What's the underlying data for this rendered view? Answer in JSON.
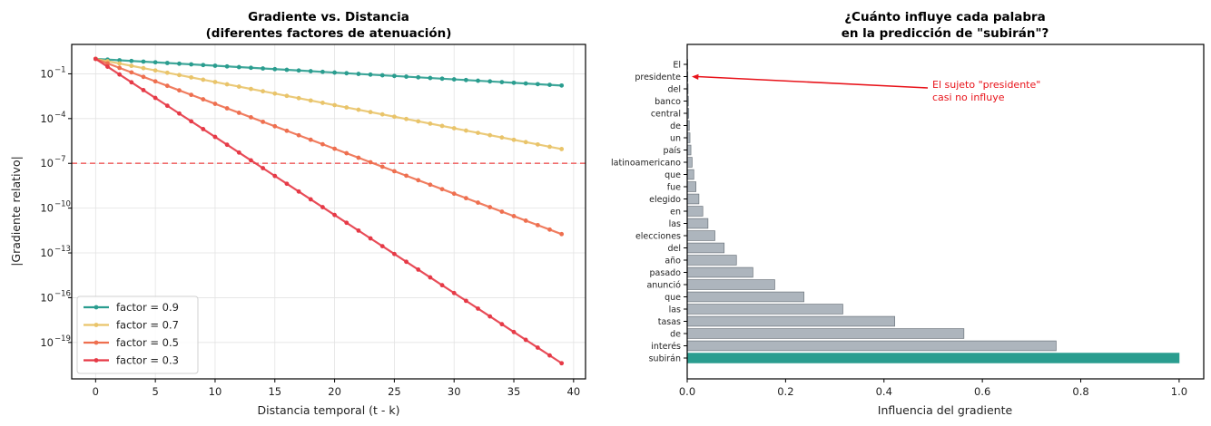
{
  "chart_data": [
    {
      "type": "line",
      "title_lines": [
        "Gradiente vs. Distancia",
        "(diferentes factores de atenuación)"
      ],
      "xlabel": "Distancia temporal (t - k)",
      "ylabel": "|Gradiente relativo|",
      "yscale": "log",
      "xlim": [
        -2,
        41
      ],
      "ylim_log10": [
        -21.44,
        0.97
      ],
      "xticks": [
        0,
        5,
        10,
        15,
        20,
        25,
        30,
        35,
        40
      ],
      "yticks_exp": [
        -1,
        -4,
        -7,
        -10,
        -13,
        -16,
        -19
      ],
      "grid": true,
      "legend_position": "lower-left",
      "threshold": {
        "value": 1e-07,
        "style": "dashed",
        "color": "#f06d6d"
      },
      "x": {
        "start": 0,
        "end": 39,
        "step": 1
      },
      "series": [
        {
          "name": "factor = 0.9",
          "factor": 0.9,
          "color": "#2a9d8f",
          "formula": "factor^x"
        },
        {
          "name": "factor = 0.7",
          "factor": 0.7,
          "color": "#e9c46a",
          "formula": "factor^x"
        },
        {
          "name": "factor = 0.5",
          "factor": 0.5,
          "color": "#ee6f4f",
          "formula": "factor^x"
        },
        {
          "name": "factor = 0.3",
          "factor": 0.3,
          "color": "#e63946",
          "formula": "factor^x"
        }
      ]
    },
    {
      "type": "bar",
      "orientation": "horizontal",
      "title_lines": [
        "¿Cuánto influye cada palabra",
        "en la predicción de \"subirán\"?"
      ],
      "xlabel": "Influencia del gradiente",
      "ylabel": "",
      "xlim": [
        0,
        1.05
      ],
      "xticks": [
        0.0,
        0.2,
        0.4,
        0.6,
        0.8,
        1.0
      ],
      "xtick_labels": [
        "0.0",
        "0.2",
        "0.4",
        "0.6",
        "0.8",
        "1.0"
      ],
      "grid": false,
      "categories": [
        "subirán",
        "interés",
        "de",
        "tasas",
        "las",
        "que",
        "anunció",
        "pasado",
        "año",
        "del",
        "elecciones",
        "las",
        "en",
        "elegido",
        "fue",
        "que",
        "latinoamericano",
        "país",
        "un",
        "de",
        "central",
        "banco",
        "del",
        "presidente",
        "El"
      ],
      "values": [
        1.0,
        0.75,
        0.5625,
        0.4219,
        0.3164,
        0.2373,
        0.178,
        0.1335,
        0.1001,
        0.0751,
        0.0563,
        0.0422,
        0.0317,
        0.0238,
        0.0178,
        0.0134,
        0.01,
        0.0075,
        0.0056,
        0.0042,
        0.0032,
        0.0024,
        0.0018,
        0.0013,
        0.001
      ],
      "highlight_index": 0,
      "bar_color": "#adb5bd",
      "bar_edge_color": "#6c757d",
      "highlight_color": "#2a9d8f",
      "annotation": {
        "text_lines": [
          "El sujeto \"presidente\"",
          "casi no influye"
        ],
        "target_category": "presidente",
        "color": "#e8131a"
      }
    }
  ]
}
